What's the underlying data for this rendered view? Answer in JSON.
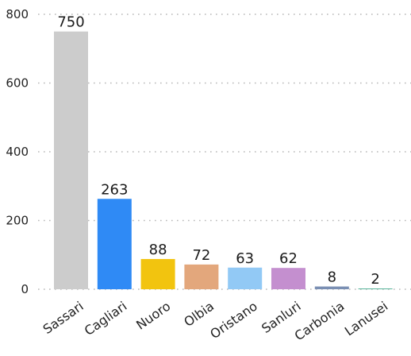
{
  "chart_data": {
    "type": "bar",
    "title": "",
    "xlabel": "",
    "ylabel": "",
    "categories": [
      "Sassari",
      "Cagliari",
      "Nuoro",
      "Olbia",
      "Oristano",
      "Sanluri",
      "Carbonia",
      "Lanusei"
    ],
    "values": [
      750,
      263,
      88,
      72,
      63,
      62,
      8,
      2
    ],
    "data_labels": [
      "750",
      "263",
      "88",
      "72",
      "63",
      "62",
      "8",
      "2"
    ],
    "colors": [
      "#cccccc",
      "#2f8af5",
      "#f2c40f",
      "#e3a77c",
      "#92c9f5",
      "#c48fcf",
      "#7a8fb3",
      "#3fa88a"
    ],
    "ylim": [
      0,
      800
    ],
    "yticks": [
      0,
      200,
      400,
      600,
      800
    ],
    "ytick_labels": [
      "0",
      "200",
      "400",
      "600",
      "800"
    ],
    "grid": true,
    "legend": "none"
  }
}
